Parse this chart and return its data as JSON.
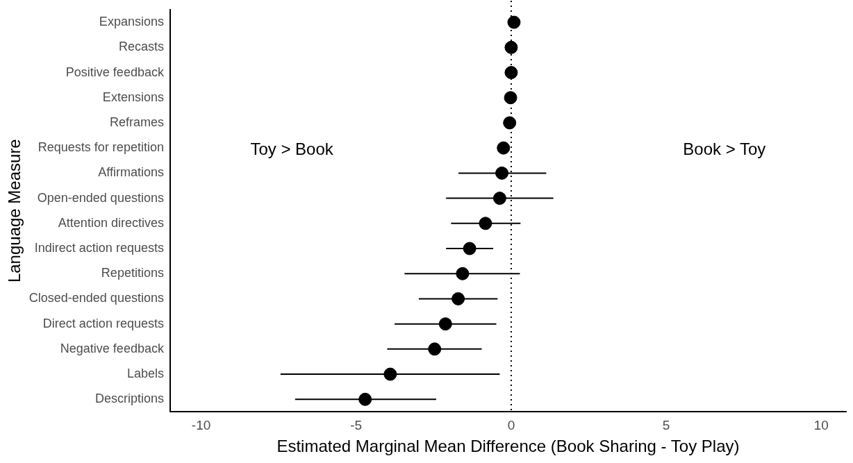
{
  "chart_data": {
    "type": "scatter",
    "orientation": "horizontal",
    "xlabel": "Estimated Marginal Mean Difference (Book Sharing - Toy Play)",
    "ylabel": "Language Measure",
    "categories": [
      "Expansions",
      "Recasts",
      "Positive feedback",
      "Extensions",
      "Reframes",
      "Requests for repetition",
      "Affirmations",
      "Open-ended questions",
      "Attention directives",
      "Indirect action requests",
      "Repetitions",
      "Closed-ended questions",
      "Direct action requests",
      "Negative feedback",
      "Labels",
      "Descriptions"
    ],
    "values": [
      0.09,
      0.0,
      0.0,
      -0.02,
      -0.05,
      -0.25,
      -0.3,
      -0.37,
      -0.83,
      -1.34,
      -1.57,
      -1.71,
      -2.12,
      -2.47,
      -3.9,
      -4.71
    ],
    "errors": [
      null,
      null,
      null,
      null,
      null,
      [
        -0.45,
        -0.07
      ],
      [
        -1.7,
        1.13
      ],
      [
        -2.1,
        1.36
      ],
      [
        -1.94,
        0.3
      ],
      [
        -2.1,
        -0.58
      ],
      [
        -3.44,
        0.28
      ],
      [
        -2.98,
        -0.44
      ],
      [
        -3.76,
        -0.48
      ],
      [
        -4.0,
        -0.95
      ],
      [
        -7.44,
        -0.37
      ],
      [
        -6.97,
        -2.42
      ]
    ],
    "color": "#000000",
    "marker": "circle",
    "grid": false,
    "legend": false,
    "xlim": [
      -11,
      10.8
    ],
    "xticks": [
      -10,
      -5,
      0,
      5,
      10
    ],
    "ref_lines": [
      {
        "axis": "x",
        "value": 0,
        "line_style": "dotted",
        "color": "#000000"
      }
    ],
    "annotations": [
      "Toy > Book",
      "Book > Toy"
    ]
  }
}
